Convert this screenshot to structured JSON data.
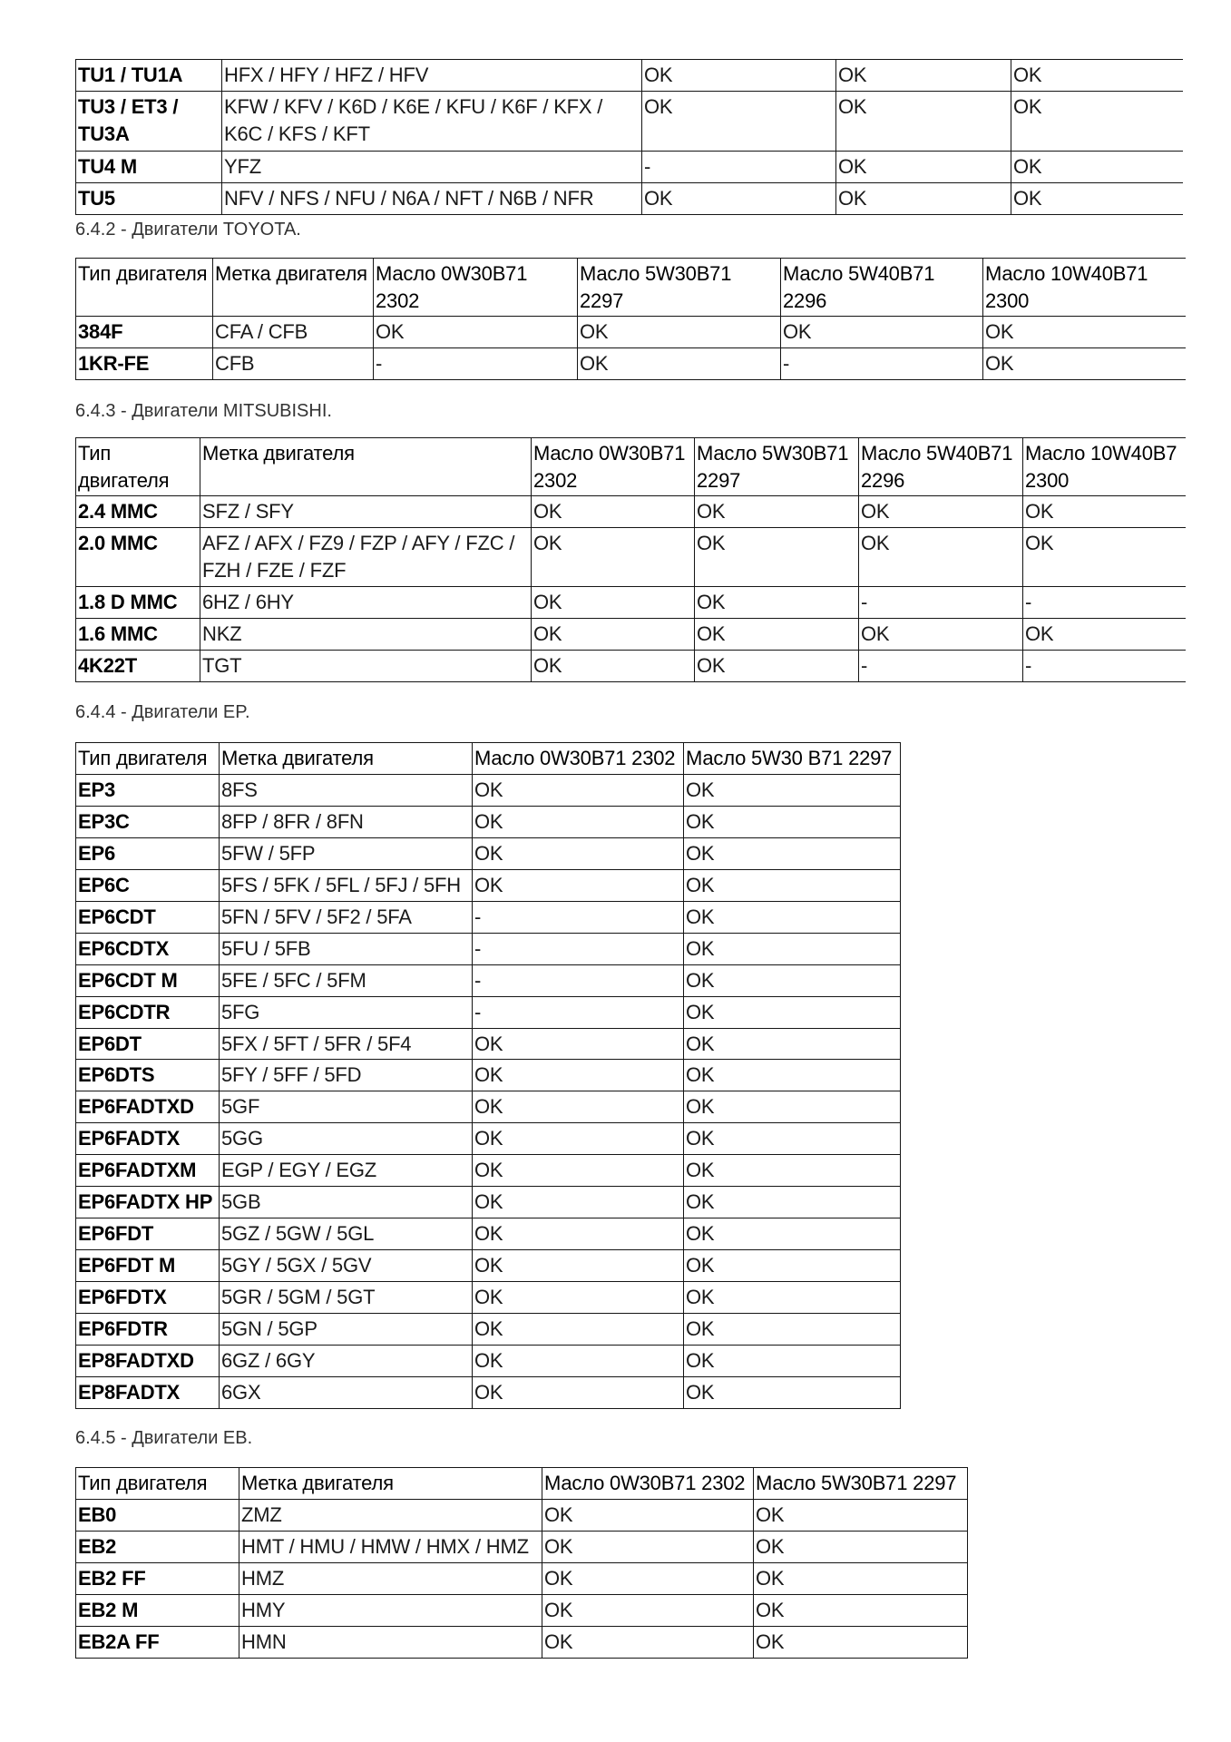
{
  "sections": [
    {
      "id": "tu",
      "title": "",
      "columns": [],
      "rows": [
        [
          "TU1 / TU1A",
          "HFX / HFY / HFZ / HFV",
          "OK",
          "OK",
          "OK"
        ],
        [
          "TU3 / ET3 / TU3A",
          "KFW / KFV / K6D / K6E / KFU / K6F / KFX / K6C / KFS / KFT",
          "OK",
          "OK",
          "OK"
        ],
        [
          "TU4 M",
          "YFZ",
          "-",
          "OK",
          "OK"
        ],
        [
          "TU5",
          "NFV / NFS / NFU / N6A / NFT / N6B / NFR",
          "OK",
          "OK",
          "OK"
        ]
      ]
    },
    {
      "id": "toyota",
      "title": "6.4.2 - Двигатели TOYOTA.",
      "columns": [
        "Тип двигателя",
        "Метка двигателя",
        "Масло 0W30B71 2302",
        "Масло 5W30B71 2297",
        "Масло 5W40B71 2296",
        "Масло 10W40B71 2300"
      ],
      "rows": [
        [
          "384F",
          "CFA / CFB",
          "OK",
          "OK",
          "OK",
          "OK"
        ],
        [
          "1KR-FE",
          "CFB",
          "-",
          "OK",
          "-",
          "OK"
        ]
      ]
    },
    {
      "id": "mitsubishi",
      "title": "6.4.3 - Двигатели MITSUBISHI.",
      "columns": [
        "Тип двигателя",
        "Метка двигателя",
        "Масло 0W30B71 2302",
        "Масло 5W30B71 2297",
        "Масло 5W40B71 2296",
        "Масло 10W40B7 2300"
      ],
      "rows": [
        [
          "2.4 MMC",
          "SFZ / SFY",
          "OK",
          "OK",
          "OK",
          "OK"
        ],
        [
          "2.0 MMC",
          "AFZ / AFX / FZ9 / FZP / AFY / FZC / FZH / FZE / FZF",
          "OK",
          "OK",
          "OK",
          "OK"
        ],
        [
          "1.8 D MMC",
          "6HZ / 6HY",
          "OK",
          "OK",
          "-",
          "-"
        ],
        [
          "1.6 MMC",
          "NKZ",
          "OK",
          "OK",
          "OK",
          "OK"
        ],
        [
          "4K22T",
          "TGT",
          "OK",
          "OK",
          "-",
          "-"
        ]
      ]
    },
    {
      "id": "ep",
      "title": "6.4.4 - Двигатели EP.",
      "columns": [
        "Тип двигателя",
        "Метка двигателя",
        "Масло 0W30B71 2302",
        "Масло 5W30 B71 2297"
      ],
      "rows": [
        [
          "EP3",
          "8FS",
          "OK",
          "OK"
        ],
        [
          "EP3C",
          "8FP / 8FR / 8FN",
          "OK",
          "OK"
        ],
        [
          "EP6",
          "5FW / 5FP",
          "OK",
          "OK"
        ],
        [
          "EP6C",
          "5FS / 5FK / 5FL / 5FJ / 5FH",
          "OK",
          "OK"
        ],
        [
          "EP6CDT",
          "5FN / 5FV / 5F2 / 5FA",
          "-",
          "OK"
        ],
        [
          "EP6CDTX",
          "5FU / 5FB",
          "-",
          "OK"
        ],
        [
          "EP6CDT M",
          "5FE / 5FC / 5FM",
          "-",
          "OK"
        ],
        [
          "EP6CDTR",
          "5FG",
          "-",
          "OK"
        ],
        [
          "EP6DT",
          "5FX / 5FT / 5FR / 5F4",
          "OK",
          "OK"
        ],
        [
          "EP6DTS",
          "5FY / 5FF / 5FD",
          "OK",
          "OK"
        ],
        [
          "EP6FADTXD",
          "5GF",
          "OK",
          "OK"
        ],
        [
          "EP6FADTX",
          "5GG",
          "OK",
          "OK"
        ],
        [
          "EP6FADTXM",
          "EGP / EGY / EGZ",
          "OK",
          "OK"
        ],
        [
          "EP6FADTX HP",
          "5GB",
          "OK",
          "OK"
        ],
        [
          "EP6FDT",
          "5GZ / 5GW / 5GL",
          "OK",
          "OK"
        ],
        [
          "EP6FDT M",
          "5GY / 5GX / 5GV",
          "OK",
          "OK"
        ],
        [
          "EP6FDTX",
          "5GR / 5GM / 5GT",
          "OK",
          "OK"
        ],
        [
          "EP6FDTR",
          "5GN / 5GP",
          "OK",
          "OK"
        ],
        [
          "EP8FADTXD",
          "6GZ / 6GY",
          "OK",
          "OK"
        ],
        [
          "EP8FADTX",
          "6GX",
          "OK",
          "OK"
        ]
      ]
    },
    {
      "id": "eb",
      "title": "6.4.5 - Двигатели EB.",
      "columns": [
        "Тип двигателя",
        "Метка двигателя",
        "Масло 0W30B71 2302",
        "Масло 5W30B71 2297"
      ],
      "rows": [
        [
          "EB0",
          "ZMZ",
          "OK",
          "OK"
        ],
        [
          "EB2",
          "HMT / HMU / HMW / HMX / HMZ",
          "OK",
          "OK"
        ],
        [
          "EB2 FF",
          "HMZ",
          "OK",
          "OK"
        ],
        [
          "EB2 M",
          "HMY",
          "OK",
          "OK"
        ],
        [
          "EB2A FF",
          "HMN",
          "OK",
          "OK"
        ]
      ]
    }
  ]
}
